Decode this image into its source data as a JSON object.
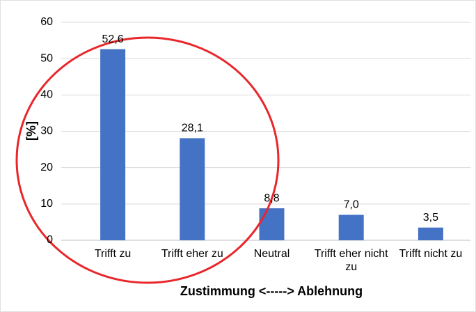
{
  "chart_data": {
    "type": "bar",
    "x_label": "Zustimmung <-----> Ablehnung",
    "y_label": "[%]",
    "categories": [
      "Trifft zu",
      "Trifft eher zu",
      "Neutral",
      "Trifft eher nicht zu",
      "Trifft nicht zu"
    ],
    "values": [
      52.6,
      28.1,
      8.8,
      7.0,
      3.5
    ],
    "value_labels": [
      "52,6",
      "28,1",
      "8,8",
      "7,0",
      "3,5"
    ],
    "color": "#4472c4",
    "ylim": [
      0,
      60
    ],
    "yticks": [
      0,
      10,
      20,
      30,
      40,
      50,
      60
    ],
    "grid": true
  }
}
